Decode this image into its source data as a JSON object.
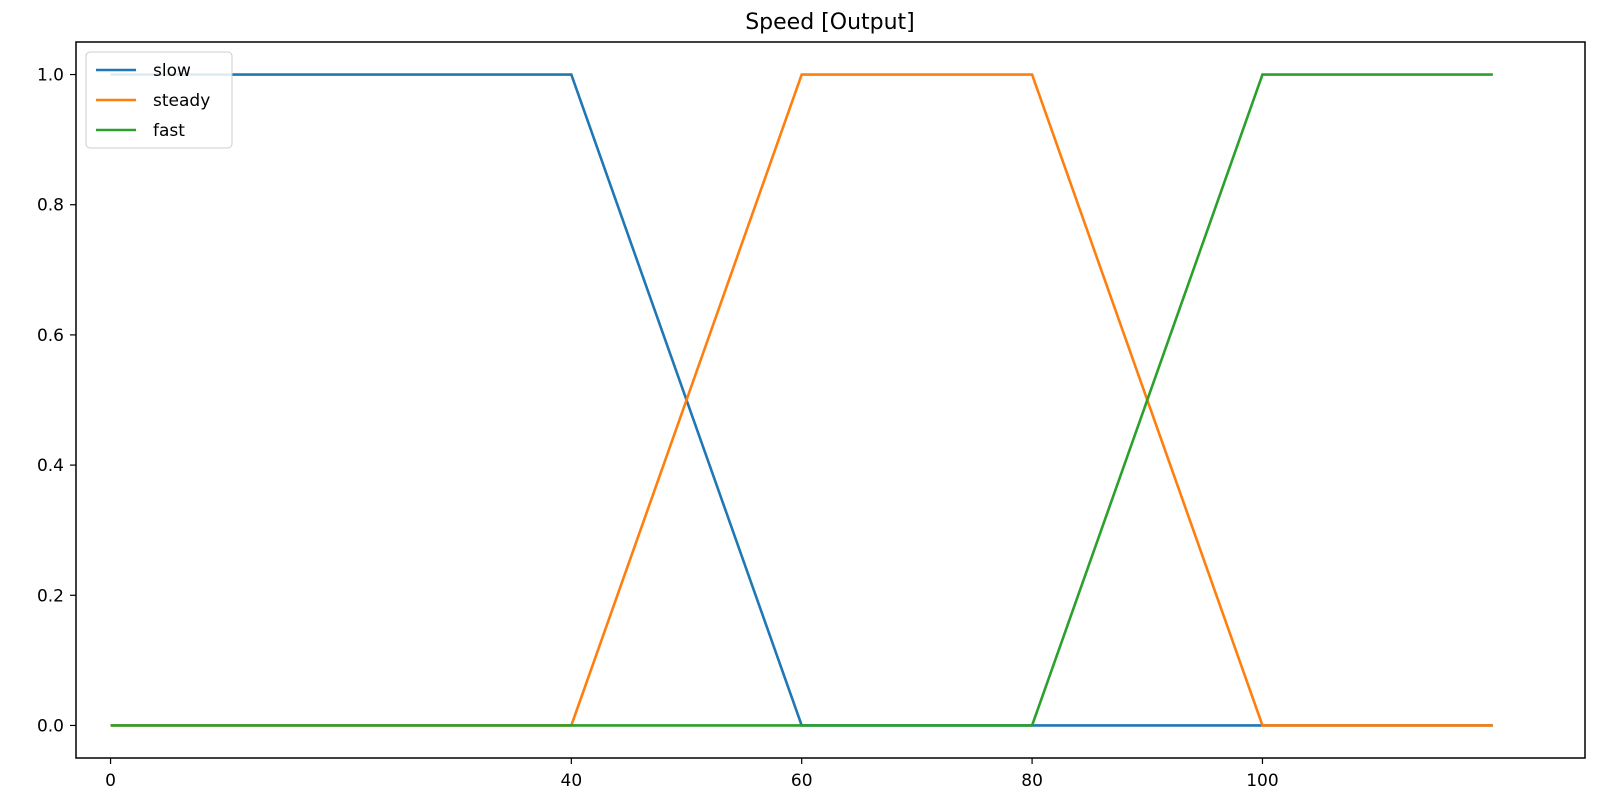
{
  "chart_data": {
    "type": "line",
    "title": "Speed [Output]",
    "xlabel": "",
    "ylabel": "",
    "xlim": [
      -3,
      128
    ],
    "ylim": [
      -0.05,
      1.05
    ],
    "x_ticks": [
      0,
      40,
      60,
      80,
      100
    ],
    "x_tick_labels": [
      "0",
      "40",
      "60",
      "80",
      "100"
    ],
    "y_ticks": [
      0.0,
      0.2,
      0.4,
      0.6,
      0.8,
      1.0
    ],
    "y_tick_labels": [
      "0.0",
      "0.2",
      "0.4",
      "0.6",
      "0.8",
      "1.0"
    ],
    "grid": false,
    "legend_position": "top-left",
    "series": [
      {
        "name": "slow",
        "color": "#1f77b4",
        "x": [
          0,
          40,
          60,
          120
        ],
        "y": [
          1,
          1,
          0,
          0
        ]
      },
      {
        "name": "steady",
        "color": "#ff7f0e",
        "x": [
          0,
          40,
          60,
          80,
          100,
          120
        ],
        "y": [
          0,
          0,
          1,
          1,
          0,
          0
        ]
      },
      {
        "name": "fast",
        "color": "#2ca02c",
        "x": [
          0,
          80,
          100,
          120
        ],
        "y": [
          0,
          0,
          1,
          1
        ]
      }
    ]
  }
}
